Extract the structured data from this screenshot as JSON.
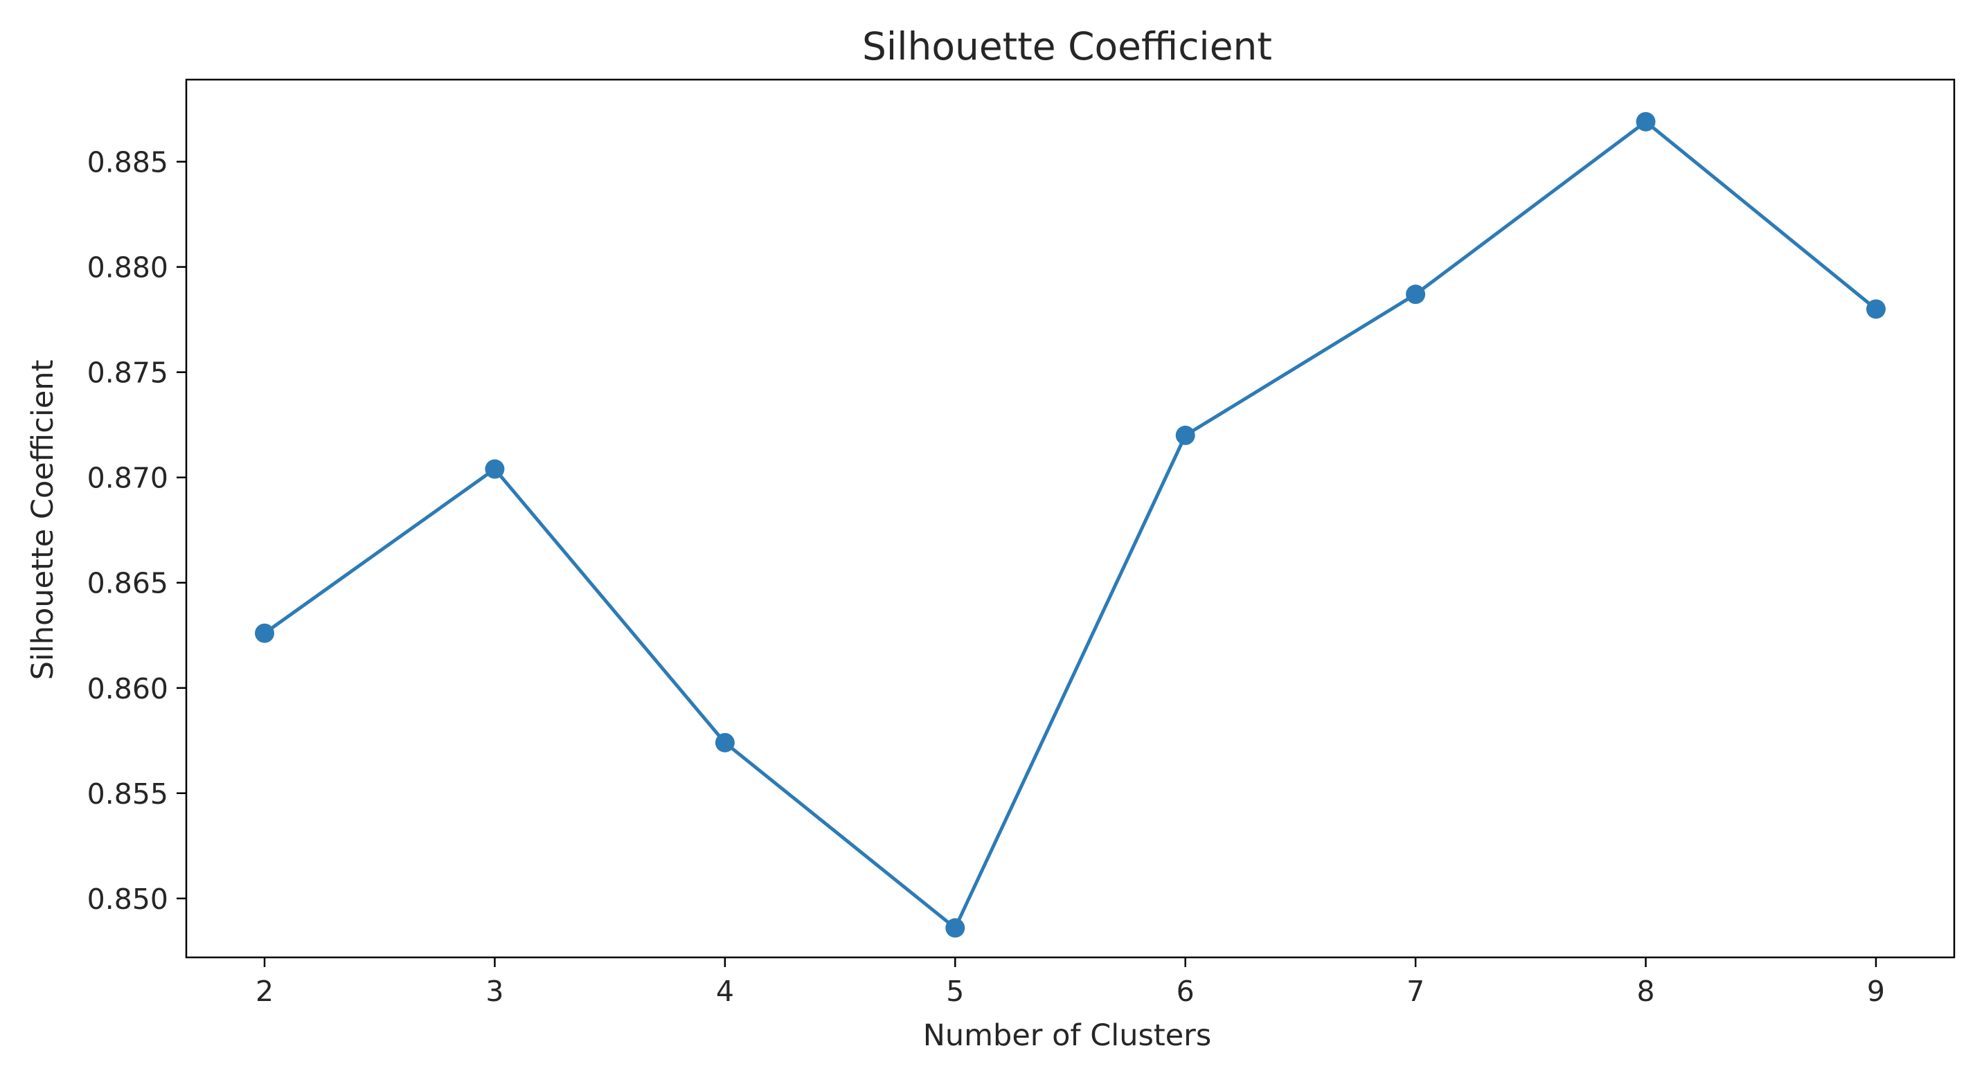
{
  "chart_data": {
    "type": "line",
    "title": "Silhouette Coefficient",
    "xlabel": "Number of Clusters",
    "ylabel": "Silhouette Coefficient",
    "x": [
      2,
      3,
      4,
      5,
      6,
      7,
      8,
      9
    ],
    "series": [
      {
        "values": [
          0.8626,
          0.8704,
          0.8574,
          0.8486,
          0.872,
          0.8787,
          0.8869,
          0.878
        ],
        "color": "#2c7bb6",
        "marker": "circle"
      }
    ],
    "xlim": [
      1.66,
      9.34
    ],
    "ylim": [
      0.8472,
      0.8889
    ],
    "xticks": [
      2,
      3,
      4,
      5,
      6,
      7,
      8,
      9
    ],
    "yticks": [
      0.85,
      0.855,
      0.86,
      0.865,
      0.87,
      0.875,
      0.88,
      0.885
    ],
    "ytick_labels": [
      "0.850",
      "0.855",
      "0.860",
      "0.865",
      "0.870",
      "0.875",
      "0.880",
      "0.885"
    ],
    "grid": false,
    "legend": "none"
  }
}
